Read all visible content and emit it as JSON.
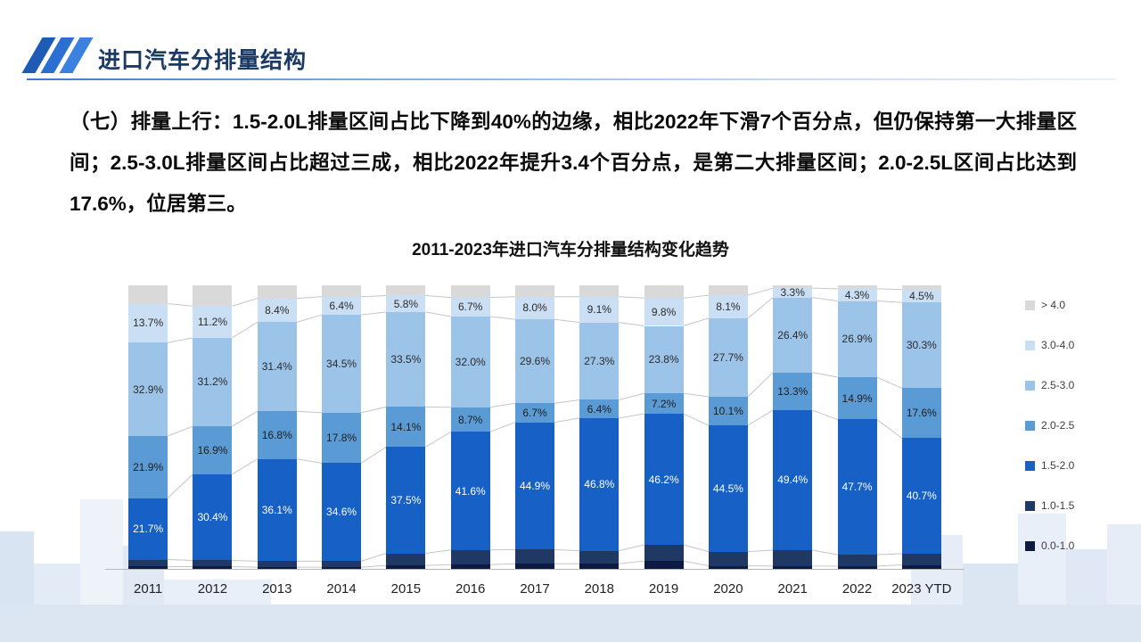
{
  "header": {
    "title": "进口汽车分排量结构"
  },
  "body": {
    "text": "（七）排量上行：1.5-2.0L排量区间占比下降到40%的边缘，相比2022年下滑7个百分点，但仍保持第一大排量区间；2.5-3.0L排量区间占比超过三成，相比2022年提升3.4个百分点，是第二大排量区间；2.0-2.5L区间占比达到17.6%，位居第三。"
  },
  "chart_data": {
    "type": "bar",
    "variant": "stacked-100-percent",
    "title": "2011-2023年进口汽车分排量结构变化趋势",
    "categories": [
      "2011",
      "2012",
      "2013",
      "2014",
      "2015",
      "2016",
      "2017",
      "2018",
      "2019",
      "2020",
      "2021",
      "2022",
      "2023 YTD"
    ],
    "unit": "%",
    "ylim": [
      0,
      100
    ],
    "grid": false,
    "legend_position": "right",
    "note": "series '> 4.0', '1.0-1.5' and '0.0-1.0' have no data labels in the chart; their values are estimated from bar heights",
    "series": [
      {
        "name": "> 4.0",
        "color": "#d9d9d9",
        "data_labels": false,
        "values": [
          6.5,
          7.3,
          4.6,
          4.0,
          3.6,
          4.3,
          4.0,
          4.0,
          4.5,
          3.5,
          1.0,
          1.2,
          1.5
        ]
      },
      {
        "name": "3.0-4.0",
        "color": "#cadef4",
        "data_labels": true,
        "label_color": "#2b2b2b",
        "values": [
          13.7,
          11.2,
          8.4,
          6.4,
          5.8,
          6.7,
          8.0,
          9.1,
          9.8,
          8.1,
          3.3,
          4.3,
          4.5
        ]
      },
      {
        "name": "2.5-3.0",
        "color": "#9cc3e8",
        "data_labels": true,
        "label_color": "#2b2b2b",
        "values": [
          32.9,
          31.2,
          31.4,
          34.5,
          33.5,
          32.0,
          29.6,
          27.3,
          23.8,
          27.7,
          26.4,
          26.9,
          30.3
        ]
      },
      {
        "name": "2.0-2.5",
        "color": "#5b9bd5",
        "data_labels": true,
        "label_color": "#1d1d1d",
        "values": [
          21.9,
          16.9,
          16.8,
          17.8,
          14.1,
          8.7,
          6.7,
          6.4,
          7.2,
          10.1,
          13.3,
          14.9,
          17.6
        ]
      },
      {
        "name": "1.5-2.0",
        "color": "#1760c6",
        "data_labels": true,
        "label_color": "#ffffff",
        "values": [
          21.7,
          30.4,
          36.1,
          34.6,
          37.5,
          41.6,
          44.9,
          46.8,
          46.2,
          44.5,
          49.4,
          47.7,
          40.7
        ]
      },
      {
        "name": "1.0-1.5",
        "color": "#1f3864",
        "data_labels": false,
        "values": [
          2.5,
          2.2,
          2.1,
          2.1,
          4.3,
          5.2,
          5.0,
          4.6,
          5.7,
          5.0,
          5.6,
          4.0,
          4.0
        ]
      },
      {
        "name": "0.0-1.0",
        "color": "#0d1b42",
        "data_labels": false,
        "values": [
          0.8,
          0.8,
          0.6,
          0.6,
          1.2,
          1.5,
          1.8,
          1.8,
          2.8,
          1.1,
          1.0,
          1.0,
          1.4
        ]
      }
    ]
  }
}
